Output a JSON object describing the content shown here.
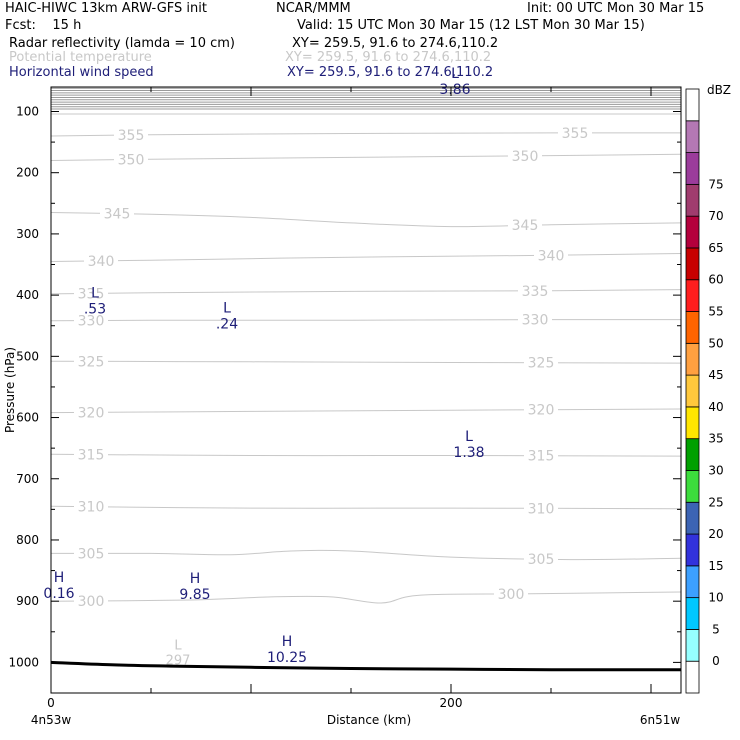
{
  "header": {
    "title_left": "HAIC-HIWC 13km ARW-GFS init",
    "title_center": "NCAR/MMM",
    "init": "Init: 00 UTC Mon 30 Mar 15",
    "fcst": "Fcst:    15 h",
    "valid": "Valid: 15 UTC Mon 30 Mar 15 (12 LST Mon 30 Mar 15)",
    "field1_name": "Radar reflectivity (lamda = 10 cm)",
    "field1_xy": "XY= 259.5, 91.6 to 274.6,110.2",
    "field2_name": "Potential temperature",
    "field2_xy": "XY= 259.5, 91.6 to 274.6,110.2",
    "field3_name": "Horizontal wind speed",
    "field3_xy": "XY= 259.5, 91.6 to 274.6,110.2"
  },
  "colors": {
    "theta_contour": "#c8c8c8",
    "wind_label": "#1e1e78",
    "terrain": "#000000"
  },
  "chart_data": {
    "type": "contour-cross-section",
    "xlabel": "Distance (km)",
    "ylabel": "Pressure (hPa)",
    "xlim": [
      0,
      315
    ],
    "ylim": [
      1050,
      60
    ],
    "x_ticks": [
      0,
      200
    ],
    "x_end_labels": [
      "4n53w",
      "6n51w"
    ],
    "y_ticks": [
      100,
      200,
      300,
      400,
      500,
      600,
      700,
      800,
      900,
      1000
    ],
    "theta_contours": [
      {
        "value": 355,
        "points": [
          [
            0,
            140
          ],
          [
            50,
            138
          ],
          [
            150,
            136
          ],
          [
            250,
            135
          ],
          [
            315,
            135
          ]
        ],
        "labels": [
          [
            40,
            "355"
          ],
          [
            262,
            "355"
          ]
        ]
      },
      {
        "value": 350,
        "points": [
          [
            0,
            180
          ],
          [
            50,
            178
          ],
          [
            150,
            175
          ],
          [
            250,
            172
          ],
          [
            315,
            170
          ]
        ],
        "labels": [
          [
            40,
            "350"
          ],
          [
            237,
            "350"
          ]
        ]
      },
      {
        "value": 345,
        "points": [
          [
            0,
            265
          ],
          [
            50,
            268
          ],
          [
            100,
            273
          ],
          [
            150,
            282
          ],
          [
            200,
            288
          ],
          [
            250,
            285
          ],
          [
            315,
            282
          ]
        ],
        "labels": [
          [
            33,
            "345"
          ],
          [
            237,
            "345"
          ]
        ]
      },
      {
        "value": 340,
        "points": [
          [
            0,
            345
          ],
          [
            50,
            343
          ],
          [
            150,
            338
          ],
          [
            250,
            335
          ],
          [
            315,
            332
          ]
        ],
        "labels": [
          [
            25,
            "340"
          ],
          [
            250,
            "340"
          ]
        ]
      },
      {
        "value": 335,
        "points": [
          [
            0,
            398
          ],
          [
            50,
            396
          ],
          [
            150,
            394
          ],
          [
            250,
            393
          ],
          [
            315,
            391
          ]
        ],
        "labels": [
          [
            20,
            "335"
          ],
          [
            242,
            "335"
          ]
        ]
      },
      {
        "value": 330,
        "points": [
          [
            0,
            442
          ],
          [
            50,
            441
          ],
          [
            150,
            441
          ],
          [
            250,
            440
          ],
          [
            315,
            440
          ]
        ],
        "labels": [
          [
            20,
            "330"
          ],
          [
            242,
            "330"
          ]
        ]
      },
      {
        "value": 325,
        "points": [
          [
            0,
            508
          ],
          [
            100,
            509
          ],
          [
            200,
            510
          ],
          [
            315,
            511
          ]
        ],
        "labels": [
          [
            20,
            "325"
          ],
          [
            245,
            "325"
          ]
        ]
      },
      {
        "value": 320,
        "points": [
          [
            0,
            592
          ],
          [
            100,
            590
          ],
          [
            200,
            588
          ],
          [
            315,
            586
          ]
        ],
        "labels": [
          [
            20,
            "320"
          ],
          [
            245,
            "320"
          ]
        ]
      },
      {
        "value": 315,
        "points": [
          [
            0,
            660
          ],
          [
            100,
            662
          ],
          [
            200,
            662
          ],
          [
            315,
            663
          ]
        ],
        "labels": [
          [
            20,
            "315"
          ],
          [
            245,
            "315"
          ]
        ]
      },
      {
        "value": 310,
        "points": [
          [
            0,
            745
          ],
          [
            100,
            748
          ],
          [
            200,
            748
          ],
          [
            315,
            749
          ]
        ],
        "labels": [
          [
            20,
            "310"
          ],
          [
            245,
            "310"
          ]
        ]
      },
      {
        "value": 305,
        "points": [
          [
            0,
            822
          ],
          [
            50,
            822
          ],
          [
            90,
            824
          ],
          [
            120,
            818
          ],
          [
            150,
            818
          ],
          [
            200,
            828
          ],
          [
            260,
            832
          ],
          [
            315,
            830
          ]
        ],
        "labels": [
          [
            20,
            "305"
          ],
          [
            245,
            "305"
          ]
        ]
      },
      {
        "value": 300,
        "points": [
          [
            0,
            900
          ],
          [
            70,
            898
          ],
          [
            110,
            893
          ],
          [
            140,
            893
          ],
          [
            165,
            903
          ],
          [
            185,
            890
          ],
          [
            240,
            888
          ],
          [
            315,
            885
          ]
        ],
        "labels": [
          [
            20,
            "300"
          ],
          [
            230,
            "300"
          ]
        ]
      }
    ],
    "theta_extrema": [
      {
        "type": "L",
        "value": "297",
        "x": 61,
        "p": 990
      }
    ],
    "wind_extrema": [
      {
        "type": "L",
        "value": "3.86",
        "x": 202,
        "p": 57
      },
      {
        "type": "L",
        "value": ".53",
        "x": 22,
        "p": 415
      },
      {
        "type": "L",
        "value": ".24",
        "x": 88,
        "p": 440
      },
      {
        "type": "L",
        "value": "1.38",
        "x": 209,
        "p": 650
      },
      {
        "type": "H",
        "value": "0.16",
        "x": 4,
        "p": 880
      },
      {
        "type": "H",
        "value": "9.85",
        "x": 72,
        "p": 882
      },
      {
        "type": "H",
        "value": "10.25",
        "x": 118,
        "p": 985
      }
    ],
    "terrain": {
      "points": [
        [
          0,
          1000
        ],
        [
          30,
          1004
        ],
        [
          60,
          1006
        ],
        [
          100,
          1008
        ],
        [
          150,
          1010
        ],
        [
          200,
          1011
        ],
        [
          250,
          1012
        ],
        [
          315,
          1012
        ]
      ]
    },
    "top_band": {
      "top": 62,
      "bottom": 96,
      "lines": 10
    },
    "colorbar": {
      "title": "dBZ",
      "labels": [
        "0",
        "5",
        "10",
        "15",
        "20",
        "25",
        "30",
        "35",
        "40",
        "45",
        "50",
        "55",
        "60",
        "65",
        "70",
        "75"
      ],
      "colors": [
        "#ffffff",
        "#96ffff",
        "#00c8ff",
        "#3ca0ff",
        "#3232dc",
        "#3c64b4",
        "#3cdc3c",
        "#00a000",
        "#ffe600",
        "#ffc83c",
        "#ffa040",
        "#ff6400",
        "#ff1e1e",
        "#c80000",
        "#b4003c",
        "#a03c6e",
        "#9b3c9b",
        "#b478b4",
        "#ffffff"
      ]
    }
  }
}
